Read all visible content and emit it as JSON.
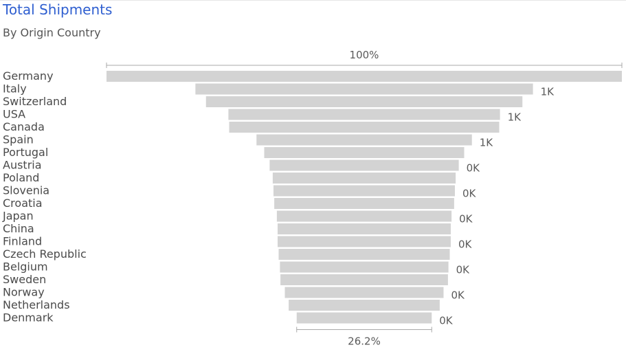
{
  "header": {
    "title": "Total Shipments",
    "subtitle": "By Origin Country"
  },
  "colors": {
    "bar": "#d3d3d3",
    "title": "#2f5fd0",
    "text": "#4a4a4a",
    "bracket": "#a8a8a8"
  },
  "chart_data": {
    "type": "bar",
    "variant": "funnel",
    "title": "Total Shipments",
    "subtitle": "By Origin Country",
    "categories": [
      "Germany",
      "Italy",
      "Switzerland",
      "USA",
      "Canada",
      "Spain",
      "Portugal",
      "Austria",
      "Poland",
      "Slovenia",
      "Croatia",
      "Japan",
      "China",
      "Finland",
      "Czech Republic",
      "Belgium",
      "Sweden",
      "Norway",
      "Netherlands",
      "Denmark"
    ],
    "series": [
      {
        "values": [
          1.0,
          0.655,
          0.614,
          0.527,
          0.524,
          0.418,
          0.388,
          0.367,
          0.355,
          0.352,
          0.349,
          0.339,
          0.336,
          0.336,
          0.332,
          0.327,
          0.325,
          0.308,
          0.293,
          0.262
        ]
      }
    ],
    "value_unit": "fraction of first bar",
    "data_labels": [
      "",
      "1K",
      "",
      "1K",
      "",
      "1K",
      "",
      "0K",
      "",
      "0K",
      "",
      "0K",
      "",
      "0K",
      "",
      "0K",
      "",
      "0K",
      "",
      "0K"
    ],
    "top_percent_label": "100%",
    "bottom_percent_label": "26.2%"
  }
}
